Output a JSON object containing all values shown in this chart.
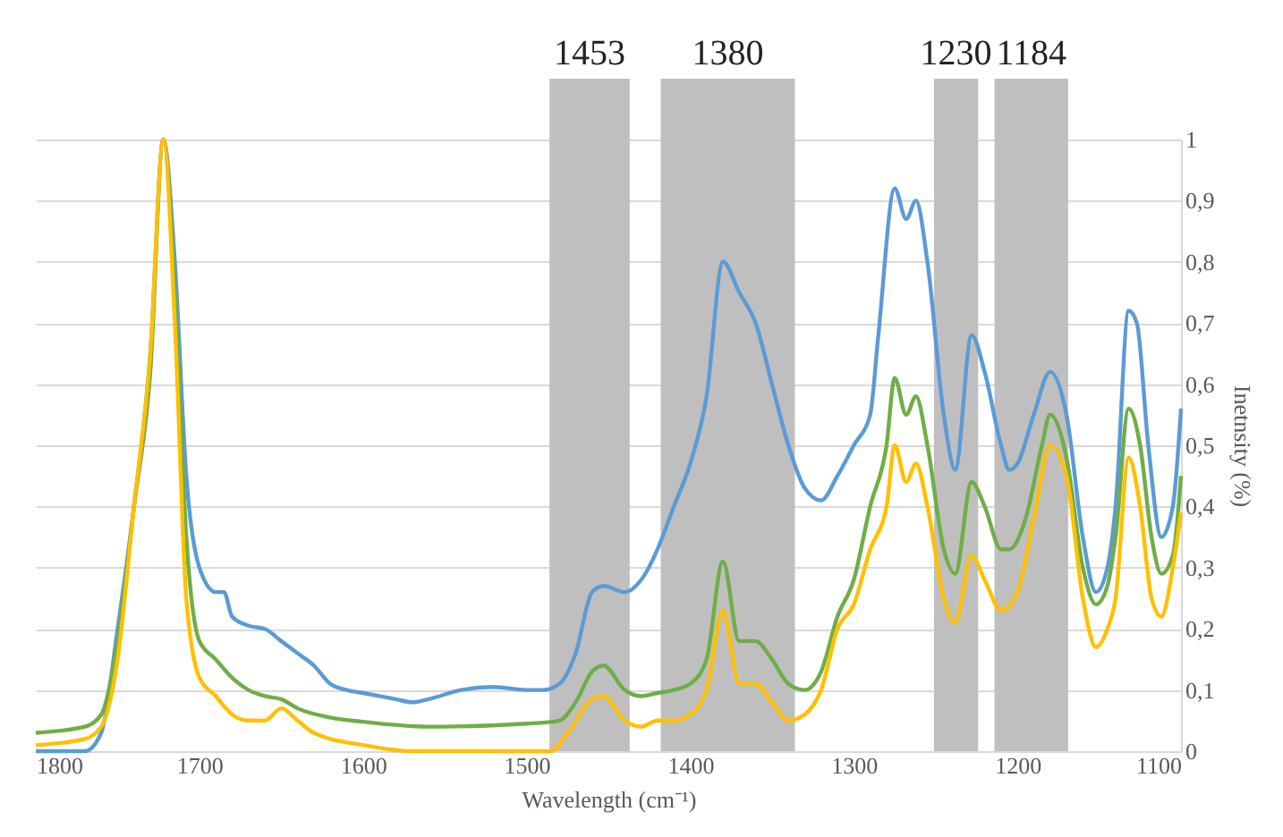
{
  "chart_data": {
    "type": "line",
    "xlabel": "Wavelength (cm⁻¹)",
    "ylabel": "Inetnsity (%)",
    "xlim": [
      1800,
      1100
    ],
    "xticks": [
      1800,
      1700,
      1600,
      1500,
      1400,
      1300,
      1200,
      1100
    ],
    "ylim": [
      0,
      1
    ],
    "yticks": [
      {
        "value": 0,
        "label": "0"
      },
      {
        "value": 0.1,
        "label": "0,1"
      },
      {
        "value": 0.2,
        "label": "0,2"
      },
      {
        "value": 0.3,
        "label": "0,3"
      },
      {
        "value": 0.4,
        "label": "0,4"
      },
      {
        "value": 0.5,
        "label": "0,5"
      },
      {
        "value": 0.6,
        "label": "0,6"
      },
      {
        "value": 0.7,
        "label": "0,7"
      },
      {
        "value": 0.8,
        "label": "0,8"
      },
      {
        "value": 0.9,
        "label": "0,9"
      },
      {
        "value": 1,
        "label": "1"
      }
    ],
    "grid": "y",
    "legend": false,
    "marker": "none",
    "line_style": "solid",
    "bands": [
      {
        "axis": "x",
        "from": 1486,
        "to": 1437,
        "label": "1453",
        "color": "#bfbfbf"
      },
      {
        "axis": "x",
        "from": 1418,
        "to": 1336,
        "label": "1380",
        "color": "#bfbfbf"
      },
      {
        "axis": "x",
        "from": 1251,
        "to": 1224,
        "label": "1230",
        "color": "#bfbfbf"
      },
      {
        "axis": "x",
        "from": 1214,
        "to": 1169,
        "label": "1184",
        "color": "#bfbfbf"
      }
    ],
    "series": [
      {
        "color": "#5b9bd5",
        "x": [
          1800,
          1770,
          1760,
          1750,
          1740,
          1730,
          1722,
          1715,
          1708,
          1700,
          1690,
          1685,
          1680,
          1670,
          1660,
          1650,
          1640,
          1630,
          1620,
          1610,
          1600,
          1580,
          1570,
          1560,
          1540,
          1520,
          1500,
          1490,
          1480,
          1470,
          1460,
          1453,
          1440,
          1430,
          1420,
          1410,
          1400,
          1390,
          1380,
          1370,
          1360,
          1350,
          1340,
          1330,
          1320,
          1310,
          1300,
          1290,
          1285,
          1275,
          1268,
          1262,
          1255,
          1245,
          1238,
          1228,
          1220,
          1210,
          1205,
          1200,
          1190,
          1180,
          1170,
          1160,
          1152,
          1145,
          1140,
          1132,
          1127,
          1120,
          1112,
          1105,
          1100
        ],
        "values": [
          0,
          0,
          0.03,
          0.2,
          0.4,
          0.65,
          1.0,
          0.8,
          0.45,
          0.3,
          0.26,
          0.26,
          0.22,
          0.205,
          0.2,
          0.18,
          0.16,
          0.14,
          0.11,
          0.1,
          0.095,
          0.085,
          0.08,
          0.085,
          0.1,
          0.105,
          0.1,
          0.1,
          0.11,
          0.16,
          0.26,
          0.27,
          0.26,
          0.28,
          0.33,
          0.4,
          0.47,
          0.58,
          0.8,
          0.75,
          0.7,
          0.6,
          0.5,
          0.43,
          0.41,
          0.45,
          0.5,
          0.55,
          0.68,
          0.92,
          0.87,
          0.9,
          0.8,
          0.55,
          0.46,
          0.68,
          0.62,
          0.5,
          0.46,
          0.47,
          0.55,
          0.62,
          0.55,
          0.35,
          0.26,
          0.3,
          0.4,
          0.72,
          0.7,
          0.5,
          0.35,
          0.4,
          0.56
        ]
      },
      {
        "color": "#70ad47",
        "x": [
          1800,
          1770,
          1760,
          1750,
          1740,
          1730,
          1722,
          1715,
          1708,
          1700,
          1690,
          1680,
          1670,
          1660,
          1650,
          1640,
          1620,
          1600,
          1560,
          1500,
          1480,
          1470,
          1460,
          1453,
          1440,
          1430,
          1420,
          1410,
          1400,
          1390,
          1380,
          1370,
          1360,
          1350,
          1340,
          1330,
          1320,
          1310,
          1300,
          1290,
          1280,
          1275,
          1268,
          1262,
          1255,
          1245,
          1238,
          1228,
          1220,
          1210,
          1205,
          1195,
          1185,
          1180,
          1170,
          1160,
          1152,
          1145,
          1140,
          1132,
          1125,
          1118,
          1112,
          1105,
          1100
        ],
        "values": [
          0.03,
          0.04,
          0.06,
          0.18,
          0.4,
          0.62,
          1.0,
          0.75,
          0.35,
          0.18,
          0.15,
          0.12,
          0.1,
          0.09,
          0.085,
          0.07,
          0.055,
          0.048,
          0.04,
          0.045,
          0.05,
          0.08,
          0.13,
          0.14,
          0.1,
          0.09,
          0.095,
          0.1,
          0.11,
          0.15,
          0.31,
          0.18,
          0.18,
          0.15,
          0.11,
          0.1,
          0.13,
          0.22,
          0.28,
          0.4,
          0.5,
          0.61,
          0.55,
          0.58,
          0.5,
          0.33,
          0.29,
          0.44,
          0.4,
          0.33,
          0.33,
          0.38,
          0.5,
          0.55,
          0.48,
          0.3,
          0.24,
          0.27,
          0.35,
          0.56,
          0.5,
          0.35,
          0.29,
          0.32,
          0.45
        ]
      },
      {
        "color": "#ffc000",
        "x": [
          1800,
          1770,
          1760,
          1750,
          1740,
          1730,
          1722,
          1715,
          1708,
          1700,
          1690,
          1680,
          1670,
          1660,
          1650,
          1640,
          1630,
          1600,
          1570,
          1500,
          1485,
          1475,
          1460,
          1453,
          1440,
          1430,
          1420,
          1410,
          1400,
          1390,
          1380,
          1370,
          1360,
          1350,
          1340,
          1330,
          1320,
          1310,
          1300,
          1290,
          1280,
          1275,
          1268,
          1262,
          1255,
          1245,
          1238,
          1228,
          1220,
          1210,
          1200,
          1190,
          1180,
          1170,
          1160,
          1152,
          1145,
          1140,
          1132,
          1125,
          1118,
          1112,
          1105,
          1100
        ],
        "values": [
          0.01,
          0.02,
          0.04,
          0.15,
          0.4,
          0.65,
          1.0,
          0.7,
          0.25,
          0.12,
          0.09,
          0.06,
          0.05,
          0.05,
          0.07,
          0.05,
          0.03,
          0.01,
          0,
          0,
          0,
          0.03,
          0.085,
          0.09,
          0.05,
          0.04,
          0.05,
          0.05,
          0.06,
          0.1,
          0.23,
          0.11,
          0.11,
          0.08,
          0.05,
          0.06,
          0.1,
          0.2,
          0.24,
          0.33,
          0.4,
          0.5,
          0.44,
          0.47,
          0.4,
          0.25,
          0.21,
          0.32,
          0.28,
          0.23,
          0.26,
          0.38,
          0.5,
          0.45,
          0.25,
          0.17,
          0.2,
          0.25,
          0.48,
          0.4,
          0.25,
          0.22,
          0.3,
          0.39
        ]
      }
    ]
  }
}
